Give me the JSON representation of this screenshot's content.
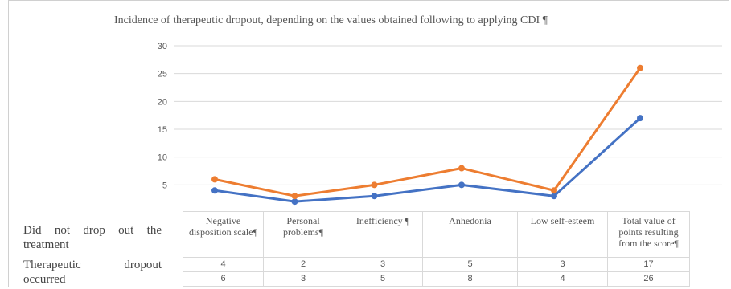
{
  "chart_data": {
    "type": "line",
    "title": "Incidence of therapeutic dropout, depending on the values obtained following to applying CDI ¶",
    "categories": [
      "Negative disposition scale¶",
      "Personal problems¶",
      "Inefficiency ¶",
      "Anhedonia",
      "Low self-esteem",
      "Total value of points resulting from the score¶"
    ],
    "series": [
      {
        "name": "Did not drop out the treatment",
        "color": "#4472c4",
        "values": [
          4,
          2,
          3,
          5,
          3,
          17
        ]
      },
      {
        "name": "Therapeutic dropout occurred",
        "color": "#ed7d31",
        "values": [
          6,
          3,
          5,
          8,
          4,
          26
        ]
      }
    ],
    "y_ticks": [
      "30",
      "25",
      "20",
      "15",
      "10",
      "5"
    ],
    "ylim": [
      0,
      30
    ],
    "grid": true,
    "legend": "left of data table"
  }
}
